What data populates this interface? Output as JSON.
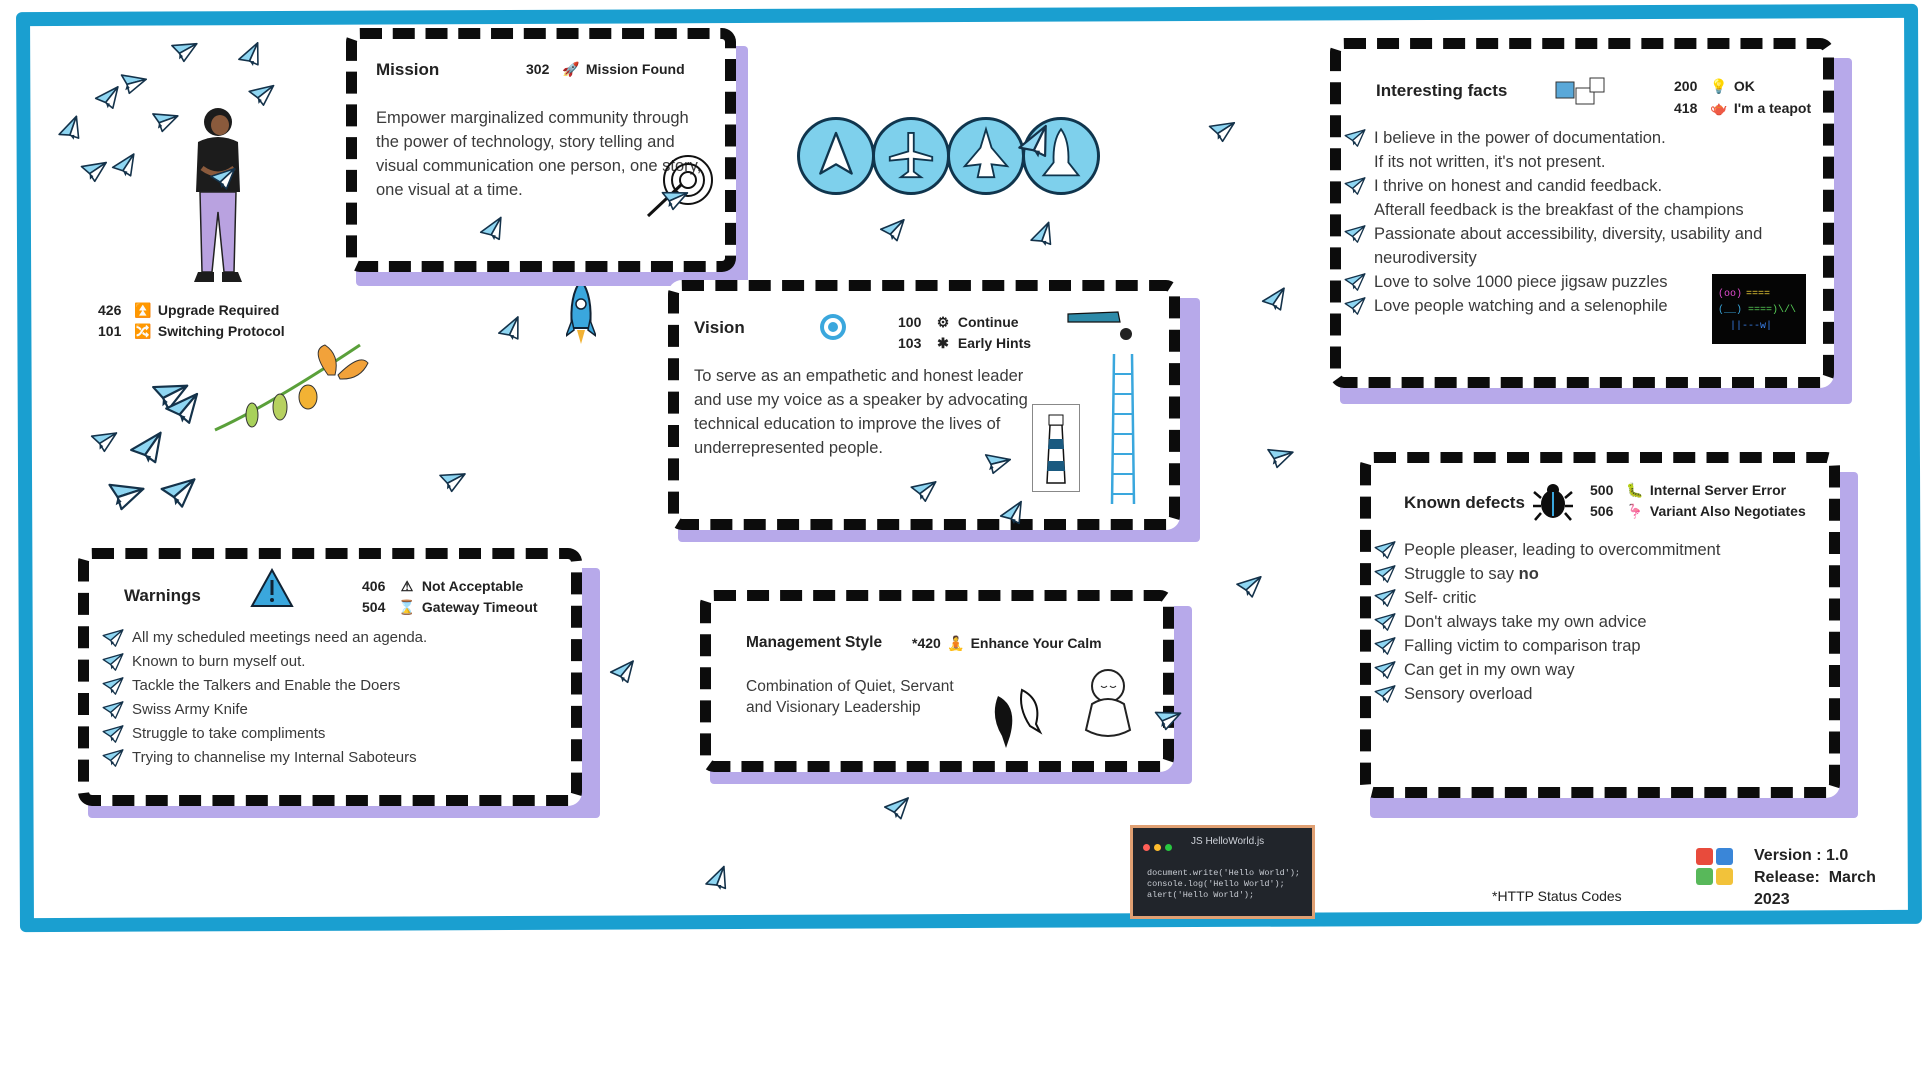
{
  "header_codes": {
    "upgrade": {
      "code": "426",
      "emoji": "⏫",
      "label": "Upgrade Required"
    },
    "switching": {
      "code": "101",
      "emoji": "🔀",
      "label": "Switching Protocol"
    }
  },
  "mission": {
    "title": "Mission",
    "code": "302",
    "emoji": "🚀",
    "code_label": "Mission Found",
    "text": "Empower marginalized community through the power of technology, story telling and visual communication one person, one story, one visual at a time."
  },
  "vision": {
    "title": "Vision",
    "codes": [
      {
        "code": "100",
        "emoji": "⚙",
        "label": "Continue"
      },
      {
        "code": "103",
        "emoji": "✱",
        "label": "Early Hints"
      }
    ],
    "text": "To serve as an empathetic and honest leader and use my voice as a speaker by advocating technical education to improve the lives of underrepresented people."
  },
  "facts": {
    "title": "Interesting facts",
    "codes": [
      {
        "code": "200",
        "emoji": "💡",
        "label": "OK"
      },
      {
        "code": "418",
        "emoji": "🫖",
        "label": "I'm a teapot"
      }
    ],
    "items": [
      "I believe in the power of documentation.\n   If its not written, it's not present.",
      "I thrive on honest and candid feedback.\n   Afterall feedback is the breakfast of the champions",
      "Passionate about accessibility, diversity, usability and neurodiversity",
      "Love to solve 1000 piece jigsaw puzzles",
      "Love people watching and a selenophile"
    ]
  },
  "warnings": {
    "title": "Warnings",
    "codes": [
      {
        "code": "406",
        "emoji": "⚠",
        "label": "Not Acceptable"
      },
      {
        "code": "504",
        "emoji": "⌛",
        "label": "Gateway Timeout"
      }
    ],
    "items": [
      "All my scheduled meetings need an  agenda.",
      "Known to burn myself out.",
      "Tackle the Talkers and Enable the Doers",
      "Swiss Army Knife",
      "Struggle to take compliments",
      "Trying to channelise my Internal Saboteurs"
    ]
  },
  "management": {
    "title": "Management Style",
    "code": "*420",
    "emoji": "🧘",
    "code_label": "Enhance Your Calm",
    "text_line1": "Combination of  Quiet, Servant",
    "text_line2": "and  Visionary Leadership"
  },
  "defects": {
    "title": "Known defects",
    "codes": [
      {
        "code": "500",
        "emoji": "🐛",
        "label": "Internal Server Error"
      },
      {
        "code": "506",
        "emoji": "🦩",
        "label": "Variant Also Negotiates"
      }
    ],
    "items": [
      {
        "text": "People pleaser, leading to overcommitment",
        "bold": ""
      },
      {
        "text": "Struggle  to say ",
        "bold": "no"
      },
      {
        "text": "Self- critic",
        "bold": ""
      },
      {
        "text": "Don't always take my own advice",
        "bold": ""
      },
      {
        "text": "Falling victim to comparison trap",
        "bold": ""
      },
      {
        "text": "Can get in my own way",
        "bold": ""
      },
      {
        "text": "Sensory overload",
        "bold": ""
      }
    ]
  },
  "editor": {
    "filename": "JS  HelloWorld.js",
    "code": "document.write('Hello World');\nconsole.log('Hello World');\nalert('Hello World');"
  },
  "footer": {
    "note": "*HTTP Status Codes",
    "version_label": "Version :",
    "version_value": "1.0",
    "release_label": "Release:",
    "release_value": "March",
    "release_year": "2023"
  },
  "colors": {
    "frame": "#1a9fd0",
    "card_shadow": "#b7a9ea",
    "plane_fill": "#8fd6f2",
    "dash": "#0c0c0c"
  },
  "icons": [
    "paper-plane-icon",
    "rocket-icon",
    "target-icon",
    "lighthouse-icon",
    "ladder-icon",
    "telescope-icon",
    "puzzle-icon",
    "bug-icon",
    "warning-icon",
    "meditation-icon",
    "koi-fish-icon",
    "butterfly-icon",
    "person-illustration"
  ]
}
